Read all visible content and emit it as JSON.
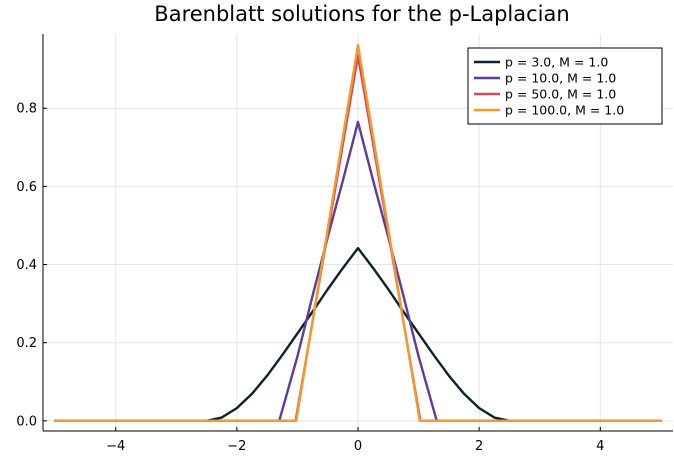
{
  "chart_data": {
    "type": "line",
    "title": "Barenblatt solutions for the p-Laplacian",
    "xlabel": "",
    "ylabel": "",
    "xlim": [
      -5.2,
      5.2
    ],
    "ylim": [
      -0.026,
      0.99
    ],
    "xticks": [
      -4,
      -2,
      0,
      2,
      4
    ],
    "xtick_labels": [
      "−4",
      "−2",
      "0",
      "2",
      "4"
    ],
    "yticks": [
      0.0,
      0.2,
      0.4,
      0.6,
      0.8
    ],
    "ytick_labels": [
      "0.0",
      "0.2",
      "0.4",
      "0.6",
      "0.8"
    ],
    "grid": true,
    "legend_position": "top-right",
    "series": [
      {
        "name": "p = 3.0, M = 1.0",
        "color": "#0a2330",
        "x": [
          -5.0,
          -2.5,
          -2.25,
          -2.0,
          -1.75,
          -1.5,
          -1.25,
          -1.0,
          -0.75,
          -0.5,
          -0.25,
          0.0,
          0.25,
          0.5,
          0.75,
          1.0,
          1.25,
          1.5,
          1.75,
          2.0,
          2.25,
          2.5,
          5.0
        ],
        "y": [
          0.0,
          0.0,
          0.0085,
          0.0325,
          0.0692,
          0.1156,
          0.1684,
          0.2238,
          0.2793,
          0.3368,
          0.3909,
          0.442,
          0.3909,
          0.3368,
          0.2793,
          0.2238,
          0.1684,
          0.1156,
          0.0692,
          0.0325,
          0.0085,
          0.0,
          0.0
        ]
      },
      {
        "name": "p = 10.0, M = 1.0",
        "color": "#5e3c99",
        "x": [
          -5.0,
          -1.3,
          -1.0,
          -0.75,
          -0.5,
          -0.25,
          0.0,
          0.25,
          0.5,
          0.75,
          1.0,
          1.3,
          5.0
        ],
        "y": [
          0.0,
          0.0,
          0.165,
          0.32,
          0.47,
          0.615,
          0.765,
          0.615,
          0.47,
          0.32,
          0.165,
          0.0,
          0.0
        ]
      },
      {
        "name": "p = 50.0, M = 1.0",
        "color": "#d1495b",
        "x": [
          -5.0,
          -1.03,
          0.0,
          1.03,
          5.0
        ],
        "y": [
          0.0,
          0.0,
          0.935,
          0.0,
          0.0
        ]
      },
      {
        "name": "p = 100.0, M = 1.0",
        "color": "#f49a2a",
        "x": [
          -5.0,
          -1.02,
          0.0,
          1.02,
          5.0
        ],
        "y": [
          0.0,
          0.0,
          0.962,
          0.0,
          0.0
        ]
      }
    ]
  }
}
